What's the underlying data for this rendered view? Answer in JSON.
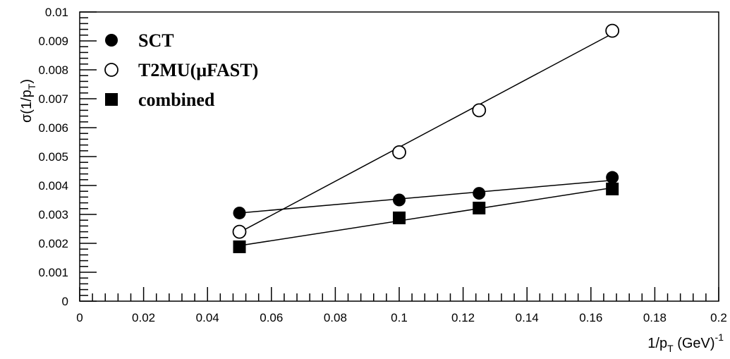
{
  "chart_data": {
    "type": "scatter",
    "title": "",
    "xlabel": "1/p",
    "xlabel_sub": "T",
    "xlabel_rest": " (GeV)",
    "xlabel_sup": "-1",
    "ylabel": "σ(1/p",
    "ylabel_sub": "T",
    "ylabel_rest": ")",
    "xlim": [
      0,
      0.2
    ],
    "ylim": [
      0,
      0.01
    ],
    "xticks": [
      "0",
      "0.02",
      "0.04",
      "0.06",
      "0.08",
      "0.1",
      "0.12",
      "0.14",
      "0.16",
      "0.18",
      "0.2"
    ],
    "yticks": [
      "0",
      "0.001",
      "0.002",
      "0.003",
      "0.004",
      "0.005",
      "0.006",
      "0.007",
      "0.008",
      "0.009",
      "0.01"
    ],
    "grid": false,
    "legend_position": "top-left",
    "series": [
      {
        "name": "SCT",
        "marker": "filled-circle",
        "x": [
          0.05,
          0.1,
          0.125,
          0.1667
        ],
        "y": [
          0.00305,
          0.0035,
          0.00373,
          0.00428
        ],
        "fit": {
          "x": [
            0.05,
            0.1667
          ],
          "y": [
            0.00305,
            0.00418
          ]
        }
      },
      {
        "name": "T2MU(μFAST)",
        "marker": "open-circle",
        "x": [
          0.05,
          0.1,
          0.125,
          0.1667
        ],
        "y": [
          0.0024,
          0.00515,
          0.0066,
          0.00935
        ],
        "fit": {
          "x": [
            0.05,
            0.1667
          ],
          "y": [
            0.00238,
            0.00925
          ]
        }
      },
      {
        "name": "combined",
        "marker": "filled-square",
        "x": [
          0.05,
          0.1,
          0.125,
          0.1667
        ],
        "y": [
          0.00188,
          0.00288,
          0.00322,
          0.00388
        ],
        "fit": {
          "x": [
            0.05,
            0.1667
          ],
          "y": [
            0.00192,
            0.00392
          ]
        }
      }
    ]
  }
}
